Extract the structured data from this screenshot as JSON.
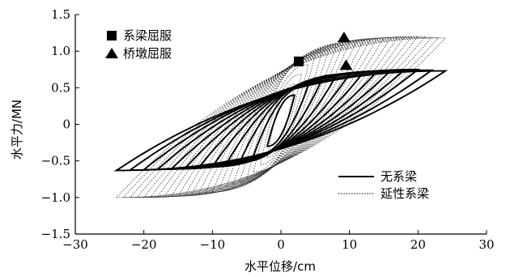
{
  "chart_data": {
    "type": "line",
    "xlabel": "水平位移/cm",
    "ylabel": "水平力/MN",
    "xlim": [
      -30,
      30
    ],
    "ylim": [
      -1.5,
      1.5
    ],
    "x_ticks": [
      -30,
      -20,
      -10,
      0,
      10,
      20,
      30
    ],
    "y_ticks": [
      -1.5,
      -1.0,
      -0.5,
      0,
      0.5,
      1.0,
      1.5
    ],
    "x_tick_labels": [
      "−30",
      "−20",
      "−10",
      "0",
      "10",
      "20",
      "30"
    ],
    "y_tick_labels": [
      "−1.5",
      "−1.0",
      "−0.5",
      "0",
      "0.5",
      "1.0",
      "1.5"
    ],
    "grid": false,
    "series": [
      {
        "name": "无系梁",
        "style": "solid",
        "color": "#000000",
        "envelope": {
          "x": [
            -24,
            -20,
            -15,
            -10,
            -5,
            -2,
            0,
            2,
            5,
            10,
            15,
            20,
            24
          ],
          "y": [
            -0.63,
            -0.62,
            -0.61,
            -0.58,
            -0.5,
            -0.3,
            0.05,
            0.4,
            0.6,
            0.69,
            0.73,
            0.75,
            0.73
          ]
        },
        "cycle_amplitudes_cm": [
          2,
          4,
          6,
          8,
          10,
          12,
          14,
          16,
          18,
          20,
          22,
          24
        ]
      },
      {
        "name": "延性系梁",
        "style": "dotted",
        "color": "#333333",
        "envelope": {
          "x": [
            -24,
            -20,
            -15,
            -10,
            -5,
            -2,
            0,
            2,
            5,
            10,
            15,
            20,
            24
          ],
          "y": [
            -1.0,
            -1.0,
            -0.98,
            -0.92,
            -0.75,
            -0.45,
            0.05,
            0.55,
            0.95,
            1.12,
            1.18,
            1.2,
            1.18
          ]
        },
        "cycle_amplitudes_cm": [
          2,
          3,
          4,
          5,
          6,
          7,
          8,
          9,
          10,
          11,
          12,
          13,
          14,
          15,
          16,
          17,
          18,
          19,
          20,
          21,
          22,
          23,
          24
        ]
      }
    ],
    "markers": [
      {
        "name": "系梁屈服",
        "shape": "square",
        "x": 2.6,
        "y": 0.86
      },
      {
        "name": "桥墩屈服",
        "shape": "triangle",
        "x": 9.2,
        "y": 1.19
      },
      {
        "name": "桥墩屈服",
        "shape": "triangle",
        "x": 9.5,
        "y": 0.81
      }
    ],
    "legends": {
      "markers": {
        "placement": "top-left",
        "items": [
          "系梁屈服",
          "桥墩屈服"
        ]
      },
      "lines": {
        "placement": "bottom-right",
        "items": [
          "无系梁",
          "延性系梁"
        ]
      }
    }
  }
}
